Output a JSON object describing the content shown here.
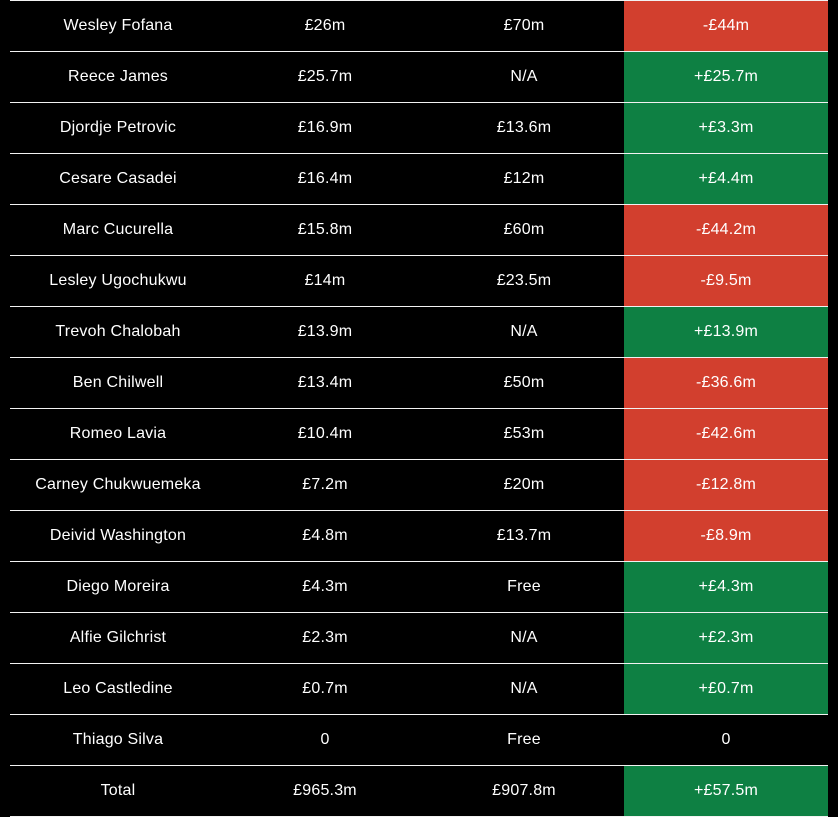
{
  "chart_data": {
    "type": "table",
    "rows": [
      {
        "player": "Wesley Fofana",
        "value": "£26m",
        "fee": "£70m",
        "difference": "-£44m",
        "status": "negative"
      },
      {
        "player": "Reece James",
        "value": "£25.7m",
        "fee": "N/A",
        "difference": "+£25.7m",
        "status": "positive"
      },
      {
        "player": "Djordje Petrovic",
        "value": "£16.9m",
        "fee": "£13.6m",
        "difference": "+£3.3m",
        "status": "positive"
      },
      {
        "player": "Cesare Casadei",
        "value": "£16.4m",
        "fee": "£12m",
        "difference": "+£4.4m",
        "status": "positive"
      },
      {
        "player": "Marc Cucurella",
        "value": "£15.8m",
        "fee": "£60m",
        "difference": "-£44.2m",
        "status": "negative"
      },
      {
        "player": "Lesley Ugochukwu",
        "value": "£14m",
        "fee": "£23.5m",
        "difference": "-£9.5m",
        "status": "negative"
      },
      {
        "player": "Trevoh Chalobah",
        "value": "£13.9m",
        "fee": "N/A",
        "difference": "+£13.9m",
        "status": "positive"
      },
      {
        "player": "Ben Chilwell",
        "value": "£13.4m",
        "fee": "£50m",
        "difference": "-£36.6m",
        "status": "negative"
      },
      {
        "player": "Romeo Lavia",
        "value": "£10.4m",
        "fee": "£53m",
        "difference": "-£42.6m",
        "status": "negative"
      },
      {
        "player": "Carney Chukwuemeka",
        "value": "£7.2m",
        "fee": "£20m",
        "difference": "-£12.8m",
        "status": "negative"
      },
      {
        "player": "Deivid Washington",
        "value": "£4.8m",
        "fee": "£13.7m",
        "difference": "-£8.9m",
        "status": "negative"
      },
      {
        "player": "Diego Moreira",
        "value": "£4.3m",
        "fee": "Free",
        "difference": "+£4.3m",
        "status": "positive"
      },
      {
        "player": "Alfie Gilchrist",
        "value": "£2.3m",
        "fee": "N/A",
        "difference": "+£2.3m",
        "status": "positive"
      },
      {
        "player": "Leo Castledine",
        "value": "£0.7m",
        "fee": "N/A",
        "difference": "+£0.7m",
        "status": "positive"
      },
      {
        "player": "Thiago Silva",
        "value": "0",
        "fee": "Free",
        "difference": "0",
        "status": "neutral"
      },
      {
        "player": "Total",
        "value": "£965.3m",
        "fee": "£907.8m",
        "difference": "+£57.5m",
        "status": "positive",
        "is_total": true
      }
    ]
  },
  "colors": {
    "positive": "#0e8043",
    "negative": "#d23f2e",
    "neutral": "#000000",
    "row_background": "#000000",
    "separator": "#f2f2f2",
    "text": "#ffffff"
  }
}
